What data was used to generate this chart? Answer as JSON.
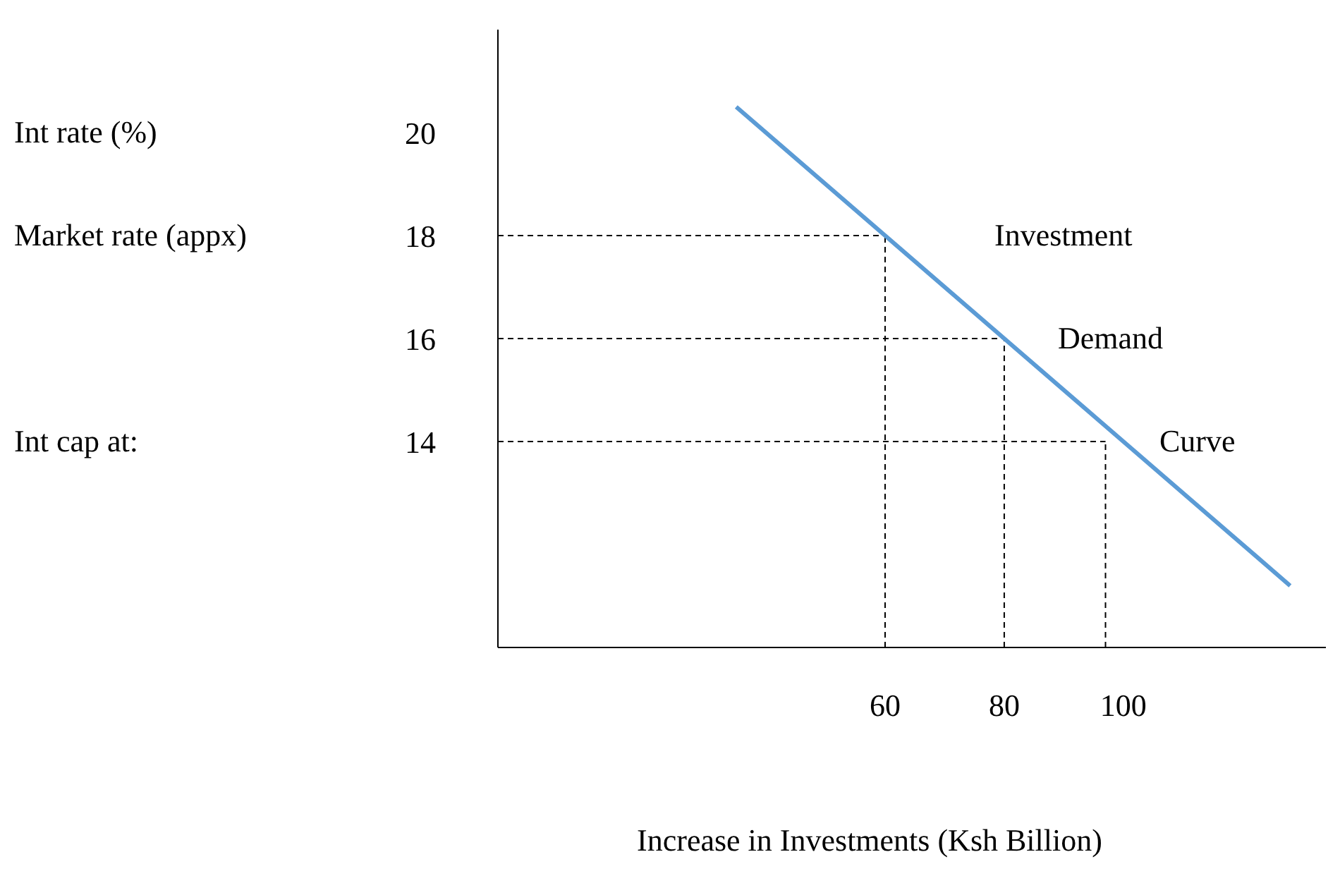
{
  "chart_data": {
    "type": "line",
    "xlabel": "Increase in Investments (Ksh Billion)",
    "x": [
      35,
      60,
      80,
      100,
      128
    ],
    "series": [
      {
        "color": "#5b9bd5",
        "values": [
          20.5,
          18,
          16,
          14,
          11.2
        ]
      }
    ],
    "xlim": [
      -5,
      134
    ],
    "ylim": [
      10,
      22
    ],
    "xticks": [
      60,
      80,
      100
    ],
    "yticks": [
      14,
      16,
      18,
      20
    ],
    "marker": "none",
    "line_style": "solid",
    "ref_lines": [
      {
        "axis": "y",
        "value": 18,
        "line_style": "dashed",
        "color": "#000000"
      },
      {
        "axis": "y",
        "value": 16,
        "line_style": "dashed",
        "color": "#000000"
      },
      {
        "axis": "y",
        "value": 14,
        "line_style": "dashed",
        "color": "#000000"
      },
      {
        "axis": "x",
        "value": 60,
        "line_style": "dashed",
        "color": "#000000"
      },
      {
        "axis": "x",
        "value": 80,
        "line_style": "dashed",
        "color": "#000000"
      },
      {
        "axis": "x",
        "value": 97,
        "line_style": "dashed",
        "color": "#000000"
      }
    ],
    "annotations": [
      "Int rate (%)",
      "Market rate (appx)",
      "Int cap at:",
      "Investment",
      "Demand",
      "Curve"
    ]
  }
}
